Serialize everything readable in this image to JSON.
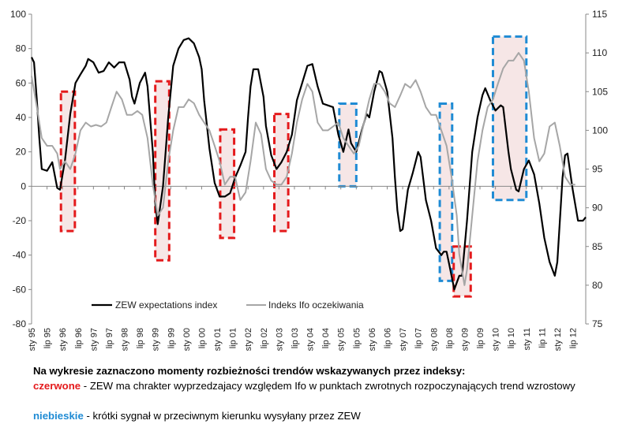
{
  "chart_data": {
    "type": "line",
    "title": "",
    "xlabel": "",
    "ylabel": "",
    "y_left_lim": [
      -80,
      100
    ],
    "y_right_lim": [
      75,
      115
    ],
    "y_left_ticks": [
      -80,
      -60,
      -40,
      -20,
      0,
      20,
      40,
      60,
      80,
      100
    ],
    "y_right_ticks": [
      75,
      80,
      85,
      90,
      95,
      100,
      105,
      110,
      115
    ],
    "x_range": [
      1995.0,
      2012.92
    ],
    "x_tick_labels": [
      "sty 95",
      "lip 95",
      "sty 96",
      "lip 96",
      "sty 97",
      "lip 97",
      "sty 98",
      "lip 98",
      "sty 99",
      "lip 99",
      "sty 00",
      "lip 00",
      "sty 01",
      "lip 01",
      "sty 02",
      "lip 02",
      "sty 03",
      "lip 03",
      "sty 04",
      "lip 04",
      "sty 05",
      "lip 05",
      "sty 06",
      "lip 06",
      "sty 07",
      "lip 07",
      "sty 08",
      "lip 08",
      "sty 09",
      "lip 09",
      "sty 10",
      "lip 10",
      "sty 11",
      "lip 11",
      "sty 12",
      "lip 12"
    ],
    "grid": false,
    "legend_position": "bottom-left",
    "series": [
      {
        "name": "ZEW expectations  index",
        "axis": "left",
        "color": "#000000",
        "points": [
          [
            1995.0,
            75
          ],
          [
            1995.08,
            72
          ],
          [
            1995.17,
            50
          ],
          [
            1995.25,
            28
          ],
          [
            1995.33,
            10
          ],
          [
            1995.5,
            9
          ],
          [
            1995.67,
            14
          ],
          [
            1995.83,
            -1
          ],
          [
            1995.92,
            -2
          ],
          [
            1996.08,
            15
          ],
          [
            1996.25,
            42
          ],
          [
            1996.42,
            60
          ],
          [
            1996.58,
            65
          ],
          [
            1996.75,
            70
          ],
          [
            1996.83,
            74
          ],
          [
            1997.0,
            72
          ],
          [
            1997.17,
            66
          ],
          [
            1997.33,
            67
          ],
          [
            1997.5,
            72
          ],
          [
            1997.67,
            69
          ],
          [
            1997.83,
            72
          ],
          [
            1998.0,
            72
          ],
          [
            1998.17,
            62
          ],
          [
            1998.25,
            52
          ],
          [
            1998.33,
            48
          ],
          [
            1998.5,
            60
          ],
          [
            1998.67,
            66
          ],
          [
            1998.75,
            58
          ],
          [
            1998.92,
            20
          ],
          [
            1999.0,
            -10
          ],
          [
            1999.08,
            -22
          ],
          [
            1999.25,
            0
          ],
          [
            1999.42,
            40
          ],
          [
            1999.58,
            70
          ],
          [
            1999.75,
            80
          ],
          [
            1999.92,
            85
          ],
          [
            2000.08,
            86
          ],
          [
            2000.25,
            83
          ],
          [
            2000.42,
            75
          ],
          [
            2000.5,
            68
          ],
          [
            2000.58,
            50
          ],
          [
            2000.75,
            22
          ],
          [
            2000.92,
            2
          ],
          [
            2001.08,
            -6
          ],
          [
            2001.25,
            -6
          ],
          [
            2001.42,
            -4
          ],
          [
            2001.58,
            5
          ],
          [
            2001.75,
            12
          ],
          [
            2001.92,
            20
          ],
          [
            2002.0,
            40
          ],
          [
            2002.08,
            58
          ],
          [
            2002.17,
            68
          ],
          [
            2002.33,
            68
          ],
          [
            2002.5,
            52
          ],
          [
            2002.58,
            35
          ],
          [
            2002.75,
            18
          ],
          [
            2002.92,
            10
          ],
          [
            2003.08,
            14
          ],
          [
            2003.25,
            20
          ],
          [
            2003.42,
            30
          ],
          [
            2003.58,
            50
          ],
          [
            2003.75,
            60
          ],
          [
            2003.92,
            70
          ],
          [
            2004.08,
            71
          ],
          [
            2004.25,
            58
          ],
          [
            2004.42,
            48
          ],
          [
            2004.58,
            47
          ],
          [
            2004.75,
            46
          ],
          [
            2004.92,
            30
          ],
          [
            2005.08,
            20
          ],
          [
            2005.25,
            33
          ],
          [
            2005.33,
            25
          ],
          [
            2005.5,
            20
          ],
          [
            2005.67,
            32
          ],
          [
            2005.83,
            42
          ],
          [
            2005.92,
            40
          ],
          [
            2006.08,
            55
          ],
          [
            2006.25,
            67
          ],
          [
            2006.33,
            66
          ],
          [
            2006.5,
            55
          ],
          [
            2006.67,
            28
          ],
          [
            2006.75,
            5
          ],
          [
            2006.83,
            -14
          ],
          [
            2006.92,
            -26
          ],
          [
            2007.0,
            -25
          ],
          [
            2007.17,
            -2
          ],
          [
            2007.33,
            8
          ],
          [
            2007.5,
            20
          ],
          [
            2007.58,
            17
          ],
          [
            2007.75,
            -8
          ],
          [
            2007.92,
            -20
          ],
          [
            2008.08,
            -36
          ],
          [
            2008.25,
            -40
          ],
          [
            2008.33,
            -38
          ],
          [
            2008.42,
            -38
          ],
          [
            2008.5,
            -45
          ],
          [
            2008.67,
            -60
          ],
          [
            2008.83,
            -52
          ],
          [
            2008.92,
            -52
          ],
          [
            2009.08,
            -20
          ],
          [
            2009.25,
            20
          ],
          [
            2009.42,
            40
          ],
          [
            2009.58,
            53
          ],
          [
            2009.67,
            57
          ],
          [
            2009.83,
            50
          ],
          [
            2010.0,
            44
          ],
          [
            2010.17,
            47
          ],
          [
            2010.25,
            46
          ],
          [
            2010.42,
            20
          ],
          [
            2010.5,
            10
          ],
          [
            2010.67,
            -2
          ],
          [
            2010.75,
            -3
          ],
          [
            2010.92,
            10
          ],
          [
            2011.08,
            15
          ],
          [
            2011.25,
            7
          ],
          [
            2011.42,
            -10
          ],
          [
            2011.58,
            -30
          ],
          [
            2011.75,
            -44
          ],
          [
            2011.92,
            -52
          ],
          [
            2012.0,
            -44
          ],
          [
            2012.17,
            5
          ],
          [
            2012.25,
            18
          ],
          [
            2012.33,
            19
          ],
          [
            2012.5,
            -2
          ],
          [
            2012.67,
            -20
          ],
          [
            2012.83,
            -20
          ],
          [
            2012.92,
            -18
          ]
        ]
      },
      {
        "name": "Indeks Ifo oczekiwania",
        "axis": "right",
        "color": "#a6a6a6",
        "points": [
          [
            1995.0,
            107
          ],
          [
            1995.17,
            103
          ],
          [
            1995.33,
            99
          ],
          [
            1995.5,
            98
          ],
          [
            1995.67,
            98
          ],
          [
            1995.83,
            97
          ],
          [
            1995.92,
            95
          ],
          [
            1996.08,
            96
          ],
          [
            1996.25,
            95
          ],
          [
            1996.42,
            97
          ],
          [
            1996.58,
            100
          ],
          [
            1996.75,
            101
          ],
          [
            1996.92,
            100.5
          ],
          [
            1997.08,
            100.7
          ],
          [
            1997.25,
            100.5
          ],
          [
            1997.42,
            101
          ],
          [
            1997.58,
            103
          ],
          [
            1997.75,
            105
          ],
          [
            1997.92,
            104
          ],
          [
            1998.08,
            102
          ],
          [
            1998.25,
            102
          ],
          [
            1998.42,
            102.5
          ],
          [
            1998.58,
            102
          ],
          [
            1998.75,
            99
          ],
          [
            1998.92,
            93
          ],
          [
            1999.08,
            89
          ],
          [
            1999.25,
            90
          ],
          [
            1999.42,
            96
          ],
          [
            1999.58,
            100
          ],
          [
            1999.75,
            103
          ],
          [
            1999.92,
            103
          ],
          [
            2000.08,
            104
          ],
          [
            2000.25,
            103.5
          ],
          [
            2000.42,
            102
          ],
          [
            2000.58,
            101
          ],
          [
            2000.75,
            100
          ],
          [
            2000.92,
            98
          ],
          [
            2001.08,
            96
          ],
          [
            2001.25,
            93
          ],
          [
            2001.42,
            94
          ],
          [
            2001.58,
            94
          ],
          [
            2001.75,
            91
          ],
          [
            2001.92,
            92
          ],
          [
            2002.08,
            96
          ],
          [
            2002.25,
            101
          ],
          [
            2002.42,
            99.5
          ],
          [
            2002.58,
            95
          ],
          [
            2002.75,
            93.5
          ],
          [
            2002.92,
            93
          ],
          [
            2003.08,
            93
          ],
          [
            2003.25,
            94
          ],
          [
            2003.42,
            97
          ],
          [
            2003.58,
            101
          ],
          [
            2003.75,
            104
          ],
          [
            2003.92,
            106
          ],
          [
            2004.08,
            105
          ],
          [
            2004.25,
            101
          ],
          [
            2004.42,
            100
          ],
          [
            2004.58,
            100
          ],
          [
            2004.75,
            100.5
          ],
          [
            2004.92,
            101
          ],
          [
            2005.08,
            99
          ],
          [
            2005.25,
            98
          ],
          [
            2005.42,
            97
          ],
          [
            2005.58,
            98
          ],
          [
            2005.75,
            101
          ],
          [
            2005.92,
            104
          ],
          [
            2006.08,
            106
          ],
          [
            2006.25,
            106
          ],
          [
            2006.42,
            105
          ],
          [
            2006.58,
            103.5
          ],
          [
            2006.75,
            103
          ],
          [
            2006.92,
            104.5
          ],
          [
            2007.08,
            106
          ],
          [
            2007.25,
            105.5
          ],
          [
            2007.42,
            106.5
          ],
          [
            2007.58,
            105
          ],
          [
            2007.75,
            103
          ],
          [
            2007.92,
            102
          ],
          [
            2008.08,
            102
          ],
          [
            2008.25,
            100
          ],
          [
            2008.42,
            98
          ],
          [
            2008.58,
            94
          ],
          [
            2008.75,
            89
          ],
          [
            2008.83,
            84
          ],
          [
            2009.0,
            80
          ],
          [
            2009.08,
            82
          ],
          [
            2009.25,
            89
          ],
          [
            2009.42,
            96
          ],
          [
            2009.58,
            100
          ],
          [
            2009.75,
            103
          ],
          [
            2009.92,
            104
          ],
          [
            2010.08,
            106
          ],
          [
            2010.25,
            108
          ],
          [
            2010.42,
            109
          ],
          [
            2010.58,
            109
          ],
          [
            2010.75,
            110
          ],
          [
            2010.92,
            109
          ],
          [
            2011.08,
            105
          ],
          [
            2011.25,
            99
          ],
          [
            2011.42,
            96
          ],
          [
            2011.58,
            97
          ],
          [
            2011.75,
            100.5
          ],
          [
            2011.92,
            101
          ],
          [
            2012.08,
            98
          ],
          [
            2012.25,
            94
          ],
          [
            2012.42,
            93
          ],
          [
            2012.58,
            93
          ]
        ]
      }
    ],
    "highlight_boxes": [
      {
        "style": "red",
        "x0": 1995.95,
        "x1": 1996.4,
        "y0": -26,
        "y1": 55
      },
      {
        "style": "red",
        "x0": 1999.0,
        "x1": 1999.45,
        "y0": -43,
        "y1": 61
      },
      {
        "style": "red",
        "x0": 2001.1,
        "x1": 2001.55,
        "y0": -30,
        "y1": 33
      },
      {
        "style": "red",
        "x0": 2002.85,
        "x1": 2003.3,
        "y0": -26,
        "y1": 42
      },
      {
        "style": "blue",
        "x0": 2004.95,
        "x1": 2005.5,
        "y0": 0,
        "y1": 48
      },
      {
        "style": "blue",
        "x0": 2008.2,
        "x1": 2008.6,
        "y0": -55,
        "y1": 48
      },
      {
        "style": "red",
        "x0": 2008.65,
        "x1": 2009.2,
        "y0": -64,
        "y1": -35
      },
      {
        "style": "blue",
        "x0": 2009.92,
        "x1": 2011.0,
        "y0": -8,
        "y1": 87
      }
    ],
    "highlight_colors": {
      "red": "#e41a1c",
      "blue": "#1f8bd4",
      "fill": "#f2dcdb"
    },
    "legend": [
      "ZEW expectations  index",
      "Indeks Ifo oczekiwania"
    ]
  },
  "caption": {
    "title": "Na wykresie zaznaczono momenty rozbieżności trendów wskazywanych przez indeksy:",
    "red_keyword": "czerwone",
    "red_text": " - ZEW ma chrakter wyprzedzajacy względem Ifo w punktach zwrotnych rozpoczynających trend wzrostowy",
    "blue_keyword": "niebieskie",
    "blue_text": " - krótki sygnał w przeciwnym kierunku wysyłany przez ZEW"
  }
}
